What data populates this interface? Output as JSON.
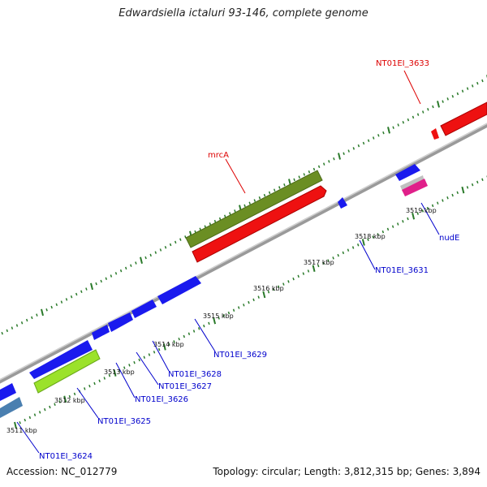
{
  "title": "Edwardsiella ictaluri 93-146, complete genome",
  "accession": "Accession: NC_012779",
  "summary": "Topology: circular; Length: 3,812,315 bp; Genes: 3,894",
  "colors": {
    "backbone": "#8a8a8a",
    "tick": "#2a7a2a",
    "gene_blue": "#1a1aee",
    "gene_red": "#ee1111",
    "gene_olive": "#6b8e23",
    "gene_lime": "#9be22a",
    "gene_steel": "#4a7fb0",
    "gene_magenta": "#e0208a",
    "gene_gray": "#b8b8b8",
    "label_blue": "#0000cc",
    "label_red": "#dd0000"
  },
  "kbp_ticks": [
    "3511 kbp",
    "3512 kbp",
    "3513 kbp",
    "3514 kbp",
    "3515 kbp",
    "3516 kbp",
    "3517 kbp",
    "3518 kbp",
    "3519 kbp"
  ],
  "gene_labels": [
    {
      "text": "NT01EI_3633",
      "color": "red"
    },
    {
      "text": "mrcA",
      "color": "red"
    },
    {
      "text": "NT01EI_3631",
      "color": "blue"
    },
    {
      "text": "nudE",
      "color": "blue"
    },
    {
      "text": "NT01EI_3629",
      "color": "blue"
    },
    {
      "text": "NT01EI_3628",
      "color": "blue"
    },
    {
      "text": "NT01EI_3627",
      "color": "blue"
    },
    {
      "text": "NT01EI_3626",
      "color": "blue"
    },
    {
      "text": "NT01EI_3625",
      "color": "blue"
    },
    {
      "text": "NT01EI_3624",
      "color": "blue"
    }
  ]
}
